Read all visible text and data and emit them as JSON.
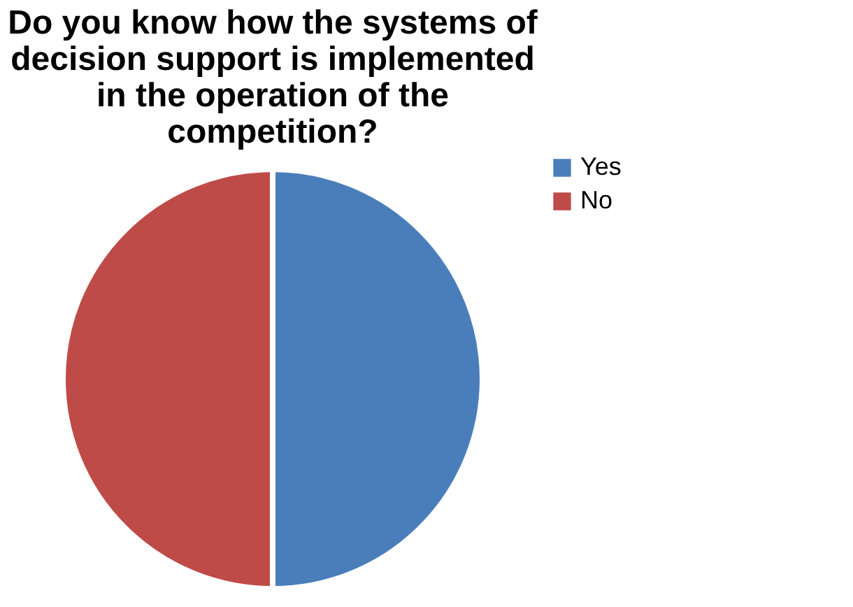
{
  "chart_data": {
    "type": "pie",
    "title": "Do you know how the systems of decision support is implemented in the operation of the competition?",
    "categories": [
      "Yes",
      "No"
    ],
    "values": [
      50,
      50
    ],
    "colors": [
      "#4a7ebb",
      "#be4b48"
    ],
    "legend": "right"
  }
}
